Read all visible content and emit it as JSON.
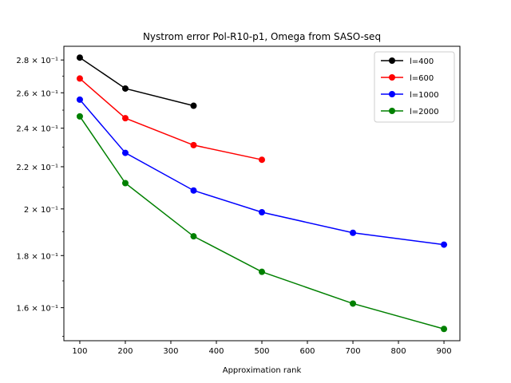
{
  "chart_data": {
    "type": "line",
    "title": "Nystrom error Pol-R10-p1, Omega from SASO-seq",
    "xlabel": "Approximation rank",
    "ylabel": "",
    "xlim": [
      65,
      935
    ],
    "ylim": [
      0.1485,
      0.2888
    ],
    "yscale": "log",
    "x_ticks": [
      100,
      200,
      300,
      400,
      500,
      600,
      700,
      800,
      900
    ],
    "y_ticks": [
      {
        "value": 0.16,
        "label": "1.6 × 10⁻¹"
      },
      {
        "value": 0.18,
        "label": "1.8 × 10⁻¹"
      },
      {
        "value": 0.2,
        "label": "2 × 10⁻¹"
      },
      {
        "value": 0.22,
        "label": "2.2 × 10⁻¹"
      },
      {
        "value": 0.24,
        "label": "2.4 × 10⁻¹"
      },
      {
        "value": 0.26,
        "label": "2.6 × 10⁻¹"
      },
      {
        "value": 0.28,
        "label": "2.8 × 10⁻¹"
      }
    ],
    "grid": false,
    "legend_position": "top-right",
    "series": [
      {
        "name": "l=400",
        "color": "#000000",
        "x": [
          100,
          200,
          350
        ],
        "y": [
          0.2815,
          0.2625,
          0.2525
        ]
      },
      {
        "name": "l=600",
        "color": "#ff0000",
        "x": [
          100,
          200,
          350,
          500
        ],
        "y": [
          0.2685,
          0.2455,
          0.231,
          0.2235
        ]
      },
      {
        "name": "l=1000",
        "color": "#0000ff",
        "x": [
          100,
          200,
          350,
          500,
          700,
          900
        ],
        "y": [
          0.256,
          0.227,
          0.2085,
          0.1985,
          0.1895,
          0.1845
        ]
      },
      {
        "name": "l=2000",
        "color": "#008000",
        "x": [
          100,
          200,
          350,
          500,
          700,
          900
        ],
        "y": [
          0.2465,
          0.212,
          0.188,
          0.1735,
          0.1615,
          0.1525
        ]
      }
    ]
  }
}
